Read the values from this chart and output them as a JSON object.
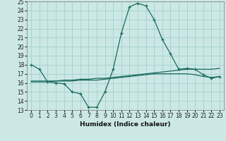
{
  "xlabel": "Humidex (Indice chaleur)",
  "bg_color": "#cce8e4",
  "grid_color": "#99cccc",
  "line_color": "#1a6b5e",
  "xlim": [
    -0.5,
    23.5
  ],
  "ylim": [
    13,
    25
  ],
  "xticks": [
    0,
    1,
    2,
    3,
    4,
    5,
    6,
    7,
    8,
    9,
    10,
    11,
    12,
    13,
    14,
    15,
    16,
    17,
    18,
    19,
    20,
    21,
    22,
    23
  ],
  "yticks": [
    13,
    14,
    15,
    16,
    17,
    18,
    19,
    20,
    21,
    22,
    23,
    24,
    25
  ],
  "line1_x": [
    0,
    1,
    2,
    3,
    4,
    5,
    6,
    7,
    8,
    9,
    10,
    11,
    12,
    13,
    14,
    15,
    16,
    17,
    18,
    19,
    20,
    21,
    22,
    23
  ],
  "line1_y": [
    18.0,
    17.5,
    16.1,
    16.0,
    15.9,
    15.0,
    14.8,
    13.3,
    13.3,
    15.0,
    17.5,
    21.5,
    24.4,
    24.8,
    24.5,
    23.0,
    20.8,
    19.2,
    17.5,
    17.6,
    17.5,
    16.9,
    16.5,
    16.7
  ],
  "line2_x": [
    0,
    1,
    2,
    3,
    4,
    5,
    6,
    7,
    8,
    9,
    10,
    11,
    12,
    13,
    14,
    15,
    16,
    17,
    18,
    19,
    20,
    21,
    22,
    23
  ],
  "line2_y": [
    16.2,
    16.2,
    16.2,
    16.2,
    16.3,
    16.3,
    16.4,
    16.4,
    16.5,
    16.5,
    16.6,
    16.7,
    16.8,
    16.9,
    17.0,
    17.1,
    17.2,
    17.3,
    17.4,
    17.5,
    17.5,
    17.5,
    17.5,
    17.6
  ],
  "line3_x": [
    0,
    1,
    2,
    3,
    4,
    5,
    6,
    7,
    8,
    9,
    10,
    11,
    12,
    13,
    14,
    15,
    16,
    17,
    18,
    19,
    20,
    21,
    22,
    23
  ],
  "line3_y": [
    16.1,
    16.1,
    16.1,
    16.2,
    16.2,
    16.2,
    16.3,
    16.3,
    16.3,
    16.4,
    16.5,
    16.6,
    16.7,
    16.8,
    16.9,
    17.0,
    17.0,
    17.0,
    17.0,
    17.0,
    16.9,
    16.7,
    16.6,
    16.7
  ],
  "xlabel_fontsize": 6.5,
  "tick_fontsize": 5.5,
  "lw": 0.9,
  "marker_size": 3.0
}
